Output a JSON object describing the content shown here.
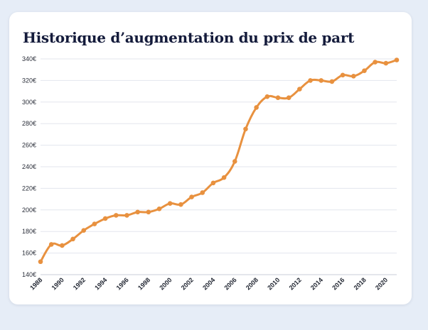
{
  "colors": {
    "line": "#e8913f",
    "grid": "#e3e6ee",
    "axis": "#c9ced8",
    "card": "#ffffff",
    "background": "#e6edf7",
    "title": "#141b3b"
  },
  "chart_data": {
    "type": "line",
    "title": "Historique d’augmentation du prix de part",
    "xlabel": "",
    "ylabel": "",
    "ylim": [
      140,
      340
    ],
    "xlim": [
      1988,
      2021
    ],
    "y_ticks": [
      {
        "value": 140,
        "label": "140€"
      },
      {
        "value": 160,
        "label": "160€"
      },
      {
        "value": 180,
        "label": "180€"
      },
      {
        "value": 200,
        "label": "200€"
      },
      {
        "value": 220,
        "label": "220€"
      },
      {
        "value": 240,
        "label": "240€"
      },
      {
        "value": 260,
        "label": "260€"
      },
      {
        "value": 280,
        "label": "280€"
      },
      {
        "value": 300,
        "label": "300€"
      },
      {
        "value": 320,
        "label": "320€"
      },
      {
        "value": 340,
        "label": "340€"
      }
    ],
    "x_ticks": [
      {
        "value": 1988,
        "label": "1988"
      },
      {
        "value": 1990,
        "label": "1990"
      },
      {
        "value": 1992,
        "label": "1992"
      },
      {
        "value": 1994,
        "label": "1994"
      },
      {
        "value": 1996,
        "label": "1996"
      },
      {
        "value": 1998,
        "label": "1998"
      },
      {
        "value": 2000,
        "label": "2000"
      },
      {
        "value": 2002,
        "label": "2002"
      },
      {
        "value": 2004,
        "label": "2004"
      },
      {
        "value": 2006,
        "label": "2006"
      },
      {
        "value": 2008,
        "label": "2008"
      },
      {
        "value": 2010,
        "label": "2010"
      },
      {
        "value": 2012,
        "label": "2012"
      },
      {
        "value": 2014,
        "label": "2014"
      },
      {
        "value": 2016,
        "label": "2016"
      },
      {
        "value": 2018,
        "label": "2018"
      },
      {
        "value": 2020,
        "label": "2020"
      }
    ],
    "grid": true,
    "legend": "none",
    "series": [
      {
        "name": "Prix de part",
        "x": [
          1988,
          1989,
          1990,
          1991,
          1992,
          1993,
          1994,
          1995,
          1996,
          1997,
          1998,
          1999,
          2000,
          2001,
          2002,
          2003,
          2004,
          2005,
          2006,
          2007,
          2008,
          2009,
          2010,
          2011,
          2012,
          2013,
          2014,
          2015,
          2016,
          2017,
          2018,
          2019,
          2020,
          2021
        ],
        "values": [
          152,
          168,
          167,
          173,
          181,
          187,
          192,
          195,
          195,
          198,
          198,
          201,
          206,
          205,
          212,
          216,
          225,
          230,
          245,
          275,
          295,
          305,
          304,
          304,
          312,
          320,
          320,
          319,
          325,
          324,
          329,
          337,
          336,
          339
        ]
      }
    ]
  }
}
